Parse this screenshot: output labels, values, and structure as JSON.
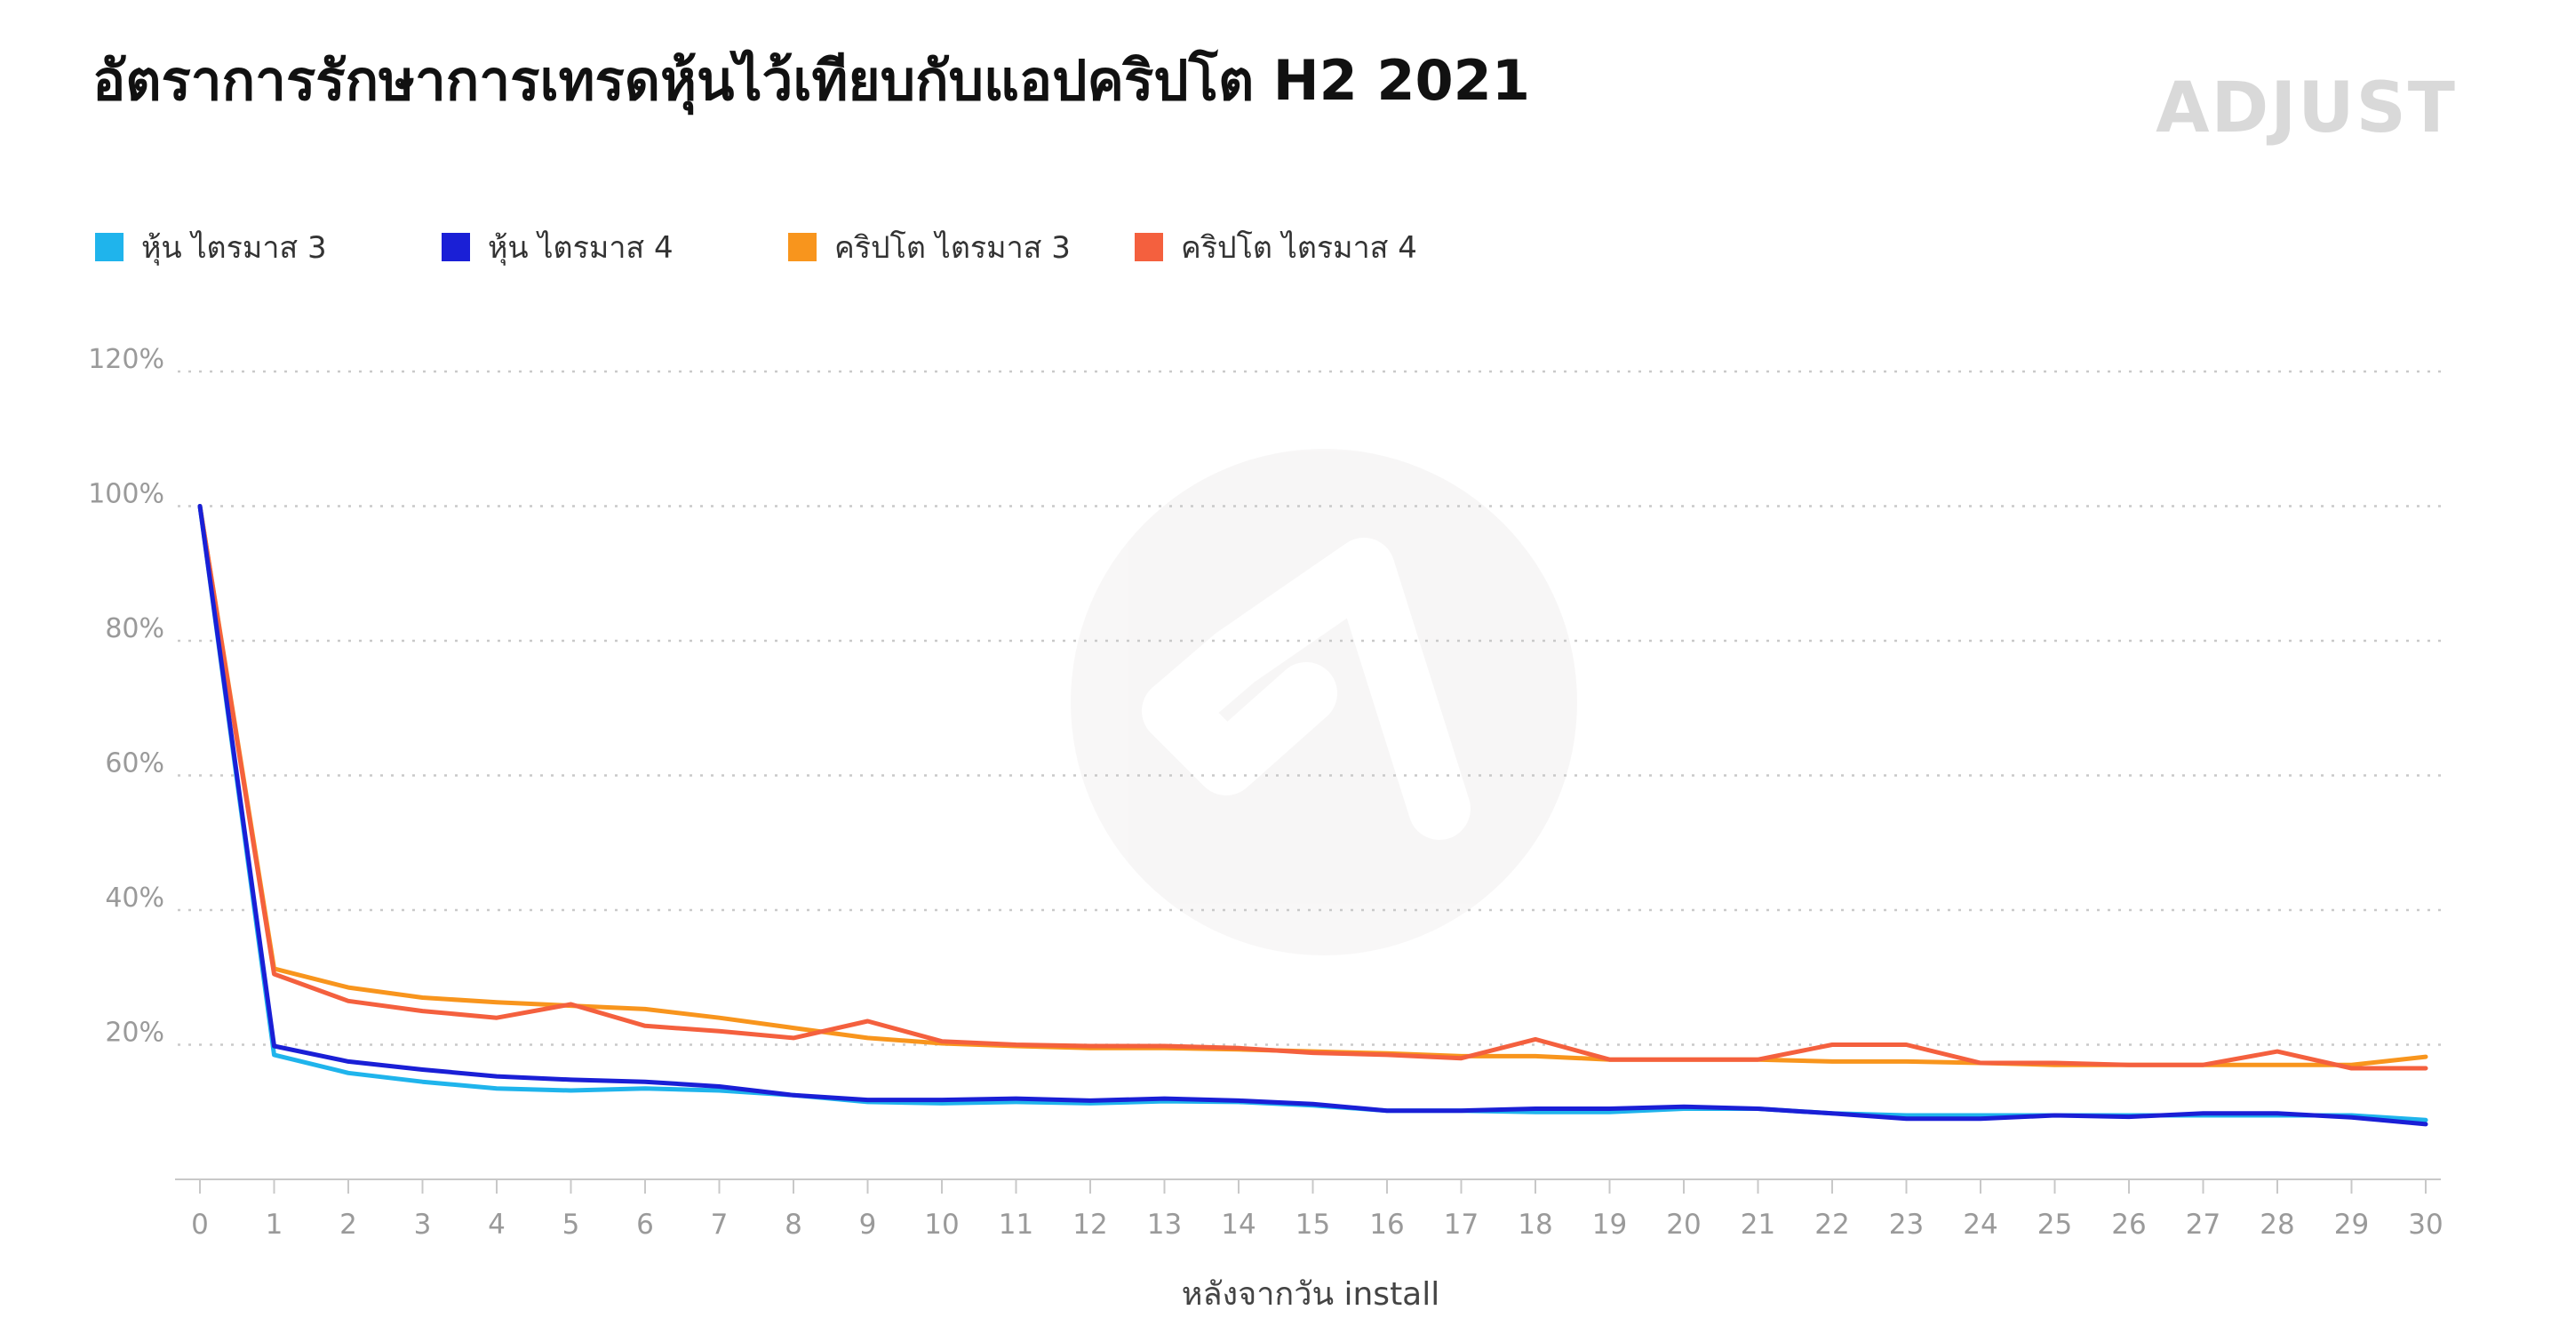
{
  "chart_data": {
    "type": "line",
    "title": "อัตราการรักษาการเทรดหุ้นไว้เทียบกับแอปคริปโต H2 2021",
    "brand": "ADJUST",
    "xlabel": "หลังจากวัน install",
    "ylabel": "",
    "x": [
      0,
      1,
      2,
      3,
      4,
      5,
      6,
      7,
      8,
      9,
      10,
      11,
      12,
      13,
      14,
      15,
      16,
      17,
      18,
      19,
      20,
      21,
      22,
      23,
      24,
      25,
      26,
      27,
      28,
      29,
      30
    ],
    "ylim": [
      0,
      120
    ],
    "yticks": [
      20,
      40,
      60,
      80,
      100,
      120
    ],
    "ytick_labels": [
      "20%",
      "40%",
      "60%",
      "80%",
      "100%",
      "120%"
    ],
    "grid": true,
    "legend_position": "top-left",
    "series": [
      {
        "name": "หุ้น ไตรมาส 3",
        "color": "#1fb4ec",
        "values": [
          100,
          18.5,
          15.8,
          14.5,
          13.5,
          13.2,
          13.5,
          13.2,
          12.5,
          11.5,
          11.3,
          11.5,
          11.3,
          11.6,
          11.5,
          11.0,
          10.2,
          10.2,
          10.0,
          10.0,
          10.5,
          10.5,
          9.8,
          9.5,
          9.5,
          9.5,
          9.5,
          9.5,
          9.5,
          9.5,
          8.8
        ]
      },
      {
        "name": "หุ้น ไตรมาส 4",
        "color": "#1a1fd6",
        "values": [
          100,
          19.8,
          17.5,
          16.3,
          15.3,
          14.8,
          14.5,
          13.8,
          12.5,
          11.8,
          11.8,
          12.0,
          11.7,
          12.0,
          11.7,
          11.2,
          10.2,
          10.2,
          10.5,
          10.5,
          10.8,
          10.5,
          9.8,
          9.0,
          9.0,
          9.5,
          9.3,
          9.8,
          9.8,
          9.2,
          8.2
        ]
      },
      {
        "name": "คริปโต ไตรมาส 3",
        "color": "#f8951d",
        "values": [
          100,
          31.3,
          28.5,
          27.0,
          26.3,
          25.8,
          25.3,
          24.0,
          22.5,
          21.0,
          20.2,
          19.8,
          19.5,
          19.5,
          19.3,
          19.0,
          18.7,
          18.3,
          18.3,
          17.8,
          17.8,
          17.8,
          17.5,
          17.5,
          17.3,
          17.0,
          17.0,
          17.0,
          17.0,
          17.0,
          18.2
        ]
      },
      {
        "name": "คริปโต ไตรมาส 4",
        "color": "#f4603e",
        "values": [
          100,
          30.5,
          26.5,
          25.0,
          24.0,
          26.0,
          22.8,
          22.0,
          21.0,
          23.5,
          20.5,
          20.0,
          19.8,
          19.8,
          19.5,
          18.8,
          18.5,
          18.0,
          20.8,
          17.8,
          17.8,
          17.8,
          20.0,
          20.0,
          17.3,
          17.3,
          17.0,
          17.0,
          19.0,
          16.5,
          16.5
        ]
      }
    ]
  }
}
